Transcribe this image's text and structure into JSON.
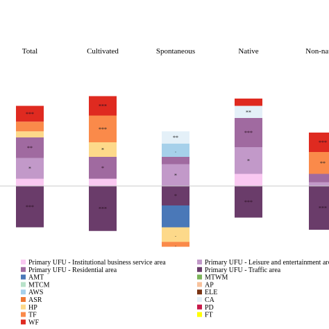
{
  "chart_data": {
    "type": "bar",
    "stacked": true,
    "diverging": true,
    "categories": [
      "Total",
      "Cultivated",
      "Spontaneous",
      "Native",
      "Non-native"
    ],
    "legend": [
      {
        "name": "Primary UFU - Institutional business service area",
        "color": "#f9c8f1"
      },
      {
        "name": "Primary UFU - Leisure and entertainment area",
        "color": "#c299c9"
      },
      {
        "name": "Primary UFU - Residential area",
        "color": "#a06aa0"
      },
      {
        "name": "Primary UFU - Traffic area",
        "color": "#6a3c6a"
      },
      {
        "name": "AMT",
        "color": "#4a78b8"
      },
      {
        "name": "MTWM",
        "color": "#7cb45a"
      },
      {
        "name": "MTCM",
        "color": "#b8e2c9"
      },
      {
        "name": "AP",
        "color": "#f8c29d"
      },
      {
        "name": "AWS",
        "color": "#a6d0ea"
      },
      {
        "name": "ELE",
        "color": "#7a3414"
      },
      {
        "name": "ASR",
        "color": "#ee7733"
      },
      {
        "name": "CA",
        "color": "#e4f0f8"
      },
      {
        "name": "HP",
        "color": "#fdd98a"
      },
      {
        "name": "PD",
        "color": "#c71a4a"
      },
      {
        "name": "TF",
        "color": "#fa8a4a"
      },
      {
        "name": "FT",
        "color": "#ffff00"
      },
      {
        "name": "WF",
        "color": "#df2a20"
      }
    ],
    "positive_segments": [
      [
        {
          "series": "Primary UFU - Institutional business service area",
          "value": 3.0,
          "sig": ""
        },
        {
          "series": "Primary UFU - Leisure and entertainment area",
          "value": 8.5,
          "sig": "*"
        },
        {
          "series": "Primary UFU - Residential area",
          "value": 8.5,
          "sig": "**"
        },
        {
          "series": "HP",
          "value": 2.5,
          "sig": ""
        },
        {
          "series": "TF",
          "value": 4.0,
          "sig": ""
        },
        {
          "series": "WF",
          "value": 6.5,
          "sig": "***"
        }
      ],
      [
        {
          "series": "Primary UFU - Institutional business service area",
          "value": 3.0,
          "sig": ""
        },
        {
          "series": "Primary UFU - Residential area",
          "value": 9.0,
          "sig": "*"
        },
        {
          "series": "HP",
          "value": 6.0,
          "sig": "*"
        },
        {
          "series": "TF",
          "value": 11.0,
          "sig": "***"
        },
        {
          "series": "WF",
          "value": 8.0,
          "sig": "***"
        }
      ],
      [
        {
          "series": "Primary UFU - Leisure and entertainment area",
          "value": 9.0,
          "sig": "*"
        },
        {
          "series": "Primary UFU - Residential area",
          "value": 3.0,
          "sig": ""
        },
        {
          "series": "AWS",
          "value": 5.5,
          "sig": "."
        },
        {
          "series": "CA",
          "value": 5.0,
          "sig": "**"
        }
      ],
      [
        {
          "series": "Primary UFU - Institutional business service area",
          "value": 5.0,
          "sig": ""
        },
        {
          "series": "Primary UFU - Leisure and entertainment area",
          "value": 11.0,
          "sig": "*"
        },
        {
          "series": "Primary UFU - Residential area",
          "value": 12.0,
          "sig": "***"
        },
        {
          "series": "CA",
          "value": 5.0,
          "sig": "**"
        },
        {
          "series": "WF",
          "value": 3.0,
          "sig": ""
        }
      ],
      [
        {
          "series": "Primary UFU - Leisure and entertainment area",
          "value": 1.5,
          "sig": ""
        },
        {
          "series": "Primary UFU - Residential area",
          "value": 3.5,
          "sig": ""
        },
        {
          "series": "TF",
          "value": 9.0,
          "sig": "**"
        },
        {
          "series": "WF",
          "value": 8.0,
          "sig": "***"
        }
      ]
    ],
    "negative_segments": [
      [
        {
          "series": "Primary UFU - Traffic area",
          "value": -17.0,
          "sig": "***"
        }
      ],
      [
        {
          "series": "Primary UFU - Traffic area",
          "value": -18.5,
          "sig": "***"
        }
      ],
      [
        {
          "series": "Primary UFU - Traffic area",
          "value": -8.0,
          "sig": "*"
        },
        {
          "series": "AMT",
          "value": -9.0,
          "sig": ""
        },
        {
          "series": "HP",
          "value": -6.0,
          "sig": "."
        },
        {
          "series": "TF",
          "value": -2.0,
          "sig": "."
        }
      ],
      [
        {
          "series": "Primary UFU - Traffic area",
          "value": -13.0,
          "sig": "***"
        }
      ],
      [
        {
          "series": "Primary UFU - Traffic area",
          "value": -18.0,
          "sig": "***"
        }
      ]
    ],
    "grid": false
  }
}
